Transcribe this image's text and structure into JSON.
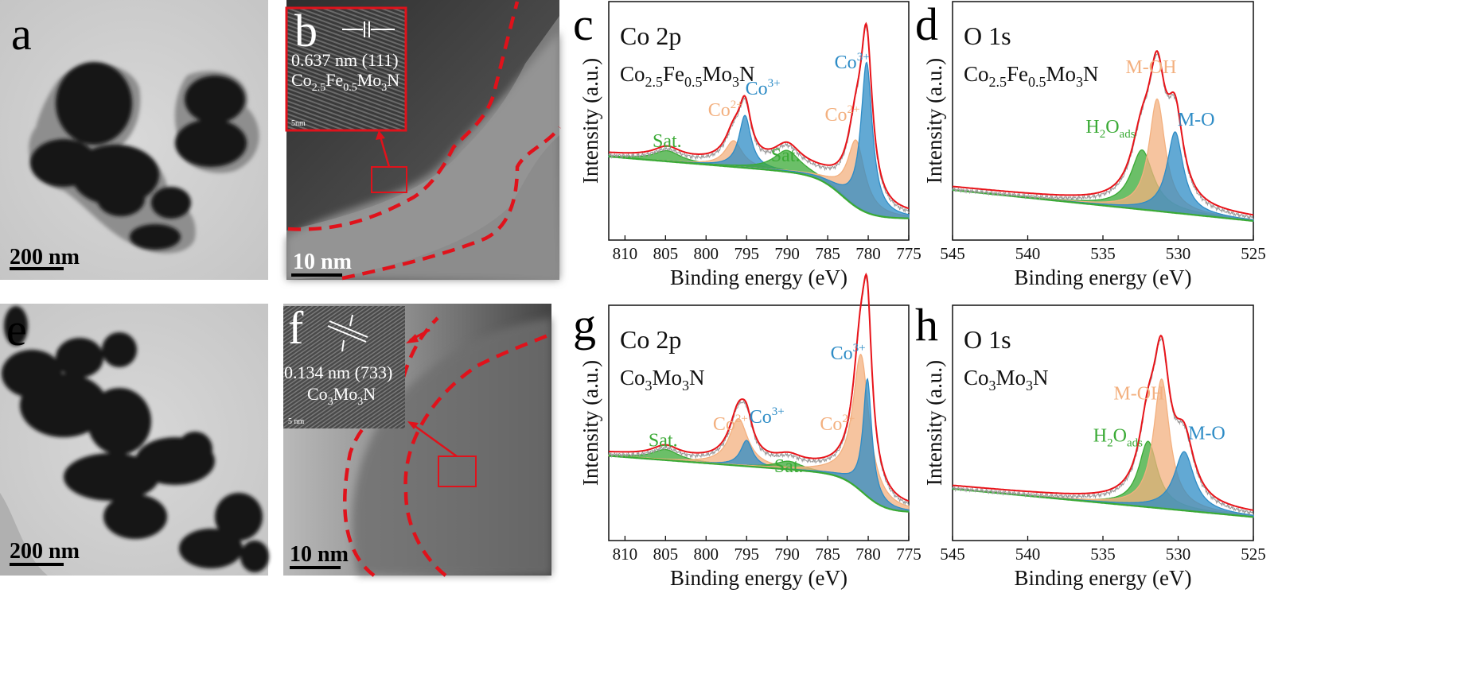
{
  "panels": {
    "a": {
      "letter": "a",
      "scale_bar": "200 nm"
    },
    "b": {
      "letter": "b",
      "scale_bar": "10 nm",
      "inset_spacing": "0.637 nm (111)",
      "inset_scale": "5nm",
      "inset_compound": {
        "base": "Co",
        "sub1": "2.5",
        "el2": "Fe",
        "sub2": "0.5",
        "el3": "Mo",
        "sub3": "3",
        "el4": "N"
      }
    },
    "e": {
      "letter": "e",
      "scale_bar": "200 nm"
    },
    "f": {
      "letter": "f",
      "scale_bar": "10 nm",
      "inset_spacing": "0.134 nm (733)",
      "inset_scale": "5 nm",
      "inset_compound": {
        "base": "Co",
        "sub1": "3",
        "el2": "Mo",
        "sub2": "3",
        "el3": "N"
      }
    }
  },
  "colors": {
    "envelope": "#e8141a",
    "co3": "#2e8cc6",
    "co2": "#f3b07f",
    "sat": "#3aaa35",
    "baseline": "#3aaa35",
    "raw": "#9a9a9a",
    "dashed": "#e0121b"
  },
  "chart_data": [
    {
      "panel": "c",
      "type": "line",
      "title": "Co 2p",
      "compound": {
        "base": "Co",
        "sub1": "2.5",
        "el2": "Fe",
        "sub2": "0.5",
        "el3": "Mo",
        "sub3": "3",
        "el4": "N"
      },
      "xlabel": "Binding energy (eV)",
      "ylabel": "Intensity (a.u.)",
      "xlim": [
        812,
        775
      ],
      "ylim": [
        0,
        100
      ],
      "xticks": [
        810,
        805,
        800,
        795,
        790,
        785,
        780,
        775
      ],
      "baseline": {
        "type": "sigmoid",
        "y_high": 35,
        "y_low": 9,
        "center": 783,
        "width": 1.6,
        "slope": 0.28,
        "ref": 812
      },
      "series": [
        {
          "name": "Sat.",
          "role": "sat",
          "center": 804.8,
          "height": 4.5,
          "width": 2.0,
          "label": "Sat.",
          "label_x": 804.8,
          "label_y": 39
        },
        {
          "name": "Co2+",
          "role": "co2",
          "center": 796.6,
          "height": 11,
          "width": 1.3,
          "label": "Co",
          "sup": "2+",
          "label_x": 797.6,
          "label_y": 52
        },
        {
          "name": "Co3+",
          "role": "co3",
          "center": 795.2,
          "height": 22,
          "width": 0.9,
          "label": "Co",
          "sup": "3+",
          "label_x": 793.0,
          "label_y": 61
        },
        {
          "name": "Sat.",
          "role": "sat",
          "center": 790.0,
          "height": 9,
          "width": 2.0,
          "label": "Sat.",
          "label_x": 790.2,
          "label_y": 33
        },
        {
          "name": "Co2+",
          "role": "co2",
          "center": 781.5,
          "height": 28,
          "width": 1.3,
          "label": "Co",
          "sup": "2+",
          "label_x": 783.2,
          "label_y": 50
        },
        {
          "name": "Co3+",
          "role": "co3",
          "center": 780.2,
          "height": 63,
          "width": 0.85,
          "label": "Co",
          "sup": "3+",
          "label_x": 782.0,
          "label_y": 72
        }
      ]
    },
    {
      "panel": "d",
      "type": "line",
      "title": "O 1s",
      "compound": {
        "base": "Co",
        "sub1": "2.5",
        "el2": "Fe",
        "sub2": "0.5",
        "el3": "Mo",
        "sub3": "3",
        "el4": "N"
      },
      "xlabel": "Binding energy (eV)",
      "ylabel": "Intensity (a.u.)",
      "xlim": [
        545,
        525
      ],
      "ylim": [
        0,
        100
      ],
      "xticks": [
        545,
        540,
        535,
        530,
        525
      ],
      "baseline": {
        "type": "linear",
        "y_start": 21,
        "y_end": 8
      },
      "series": [
        {
          "name": "H2Oads",
          "role": "sat",
          "center": 532.4,
          "height": 25,
          "width": 0.9,
          "label": "H",
          "sub": "2",
          "label_tail": "O",
          "sub2": "ads",
          "label_x": 534.5,
          "label_y": 45
        },
        {
          "name": "M-OH",
          "role": "co2",
          "center": 531.4,
          "height": 47,
          "width": 0.65,
          "label": "M-OH",
          "label_x": 531.8,
          "label_y": 70
        },
        {
          "name": "M-O",
          "role": "co3",
          "center": 530.2,
          "height": 34,
          "width": 0.65,
          "label": "M-O",
          "label_x": 528.8,
          "label_y": 48
        }
      ]
    },
    {
      "panel": "g",
      "type": "line",
      "title": "Co 2p",
      "compound": {
        "base": "Co",
        "sub1": "3",
        "el2": "Mo",
        "sub2": "3",
        "el3": "N"
      },
      "xlabel": "Binding energy (eV)",
      "ylabel": "Intensity (a.u.)",
      "xlim": [
        812,
        775
      ],
      "ylim": [
        0,
        100
      ],
      "xticks": [
        810,
        805,
        800,
        795,
        790,
        785,
        780,
        775
      ],
      "baseline": {
        "type": "sigmoid",
        "y_high": 36,
        "y_low": 12,
        "center": 780.5,
        "width": 1.4,
        "slope": 0.26,
        "ref": 812
      },
      "series": [
        {
          "name": "Sat.",
          "role": "sat",
          "center": 805.0,
          "height": 4.5,
          "width": 2.0,
          "label": "Sat.",
          "label_x": 805.3,
          "label_y": 40
        },
        {
          "name": "Co2+",
          "role": "co2",
          "center": 796.0,
          "height": 20,
          "width": 1.4,
          "label": "Co",
          "sup": "2+",
          "label_x": 797.0,
          "label_y": 47
        },
        {
          "name": "Co3+",
          "role": "co3",
          "center": 795.0,
          "height": 11,
          "width": 0.9,
          "label": "Co",
          "sup": "3+",
          "label_x": 792.5,
          "label_y": 50
        },
        {
          "name": "Sat.",
          "role": "sat",
          "center": 789.8,
          "height": 3.5,
          "width": 2.0,
          "label": "Sat.",
          "label_x": 789.8,
          "label_y": 29
        },
        {
          "name": "Co2+",
          "role": "co2",
          "center": 780.9,
          "height": 58,
          "width": 1.2,
          "label": "Co",
          "sup": "2+",
          "label_x": 783.8,
          "label_y": 47
        },
        {
          "name": "Co3+",
          "role": "co3",
          "center": 780.1,
          "height": 50,
          "width": 0.65,
          "label": "Co",
          "sup": "3+",
          "label_x": 782.5,
          "label_y": 77
        }
      ]
    },
    {
      "panel": "h",
      "type": "line",
      "title": "O 1s",
      "compound": {
        "base": "Co",
        "sub1": "3",
        "el2": "Mo",
        "sub2": "3",
        "el3": "N"
      },
      "xlabel": "Binding energy (eV)",
      "ylabel": "Intensity (a.u.)",
      "xlim": [
        545,
        525
      ],
      "ylim": [
        0,
        100
      ],
      "xticks": [
        545,
        540,
        535,
        530,
        525
      ],
      "baseline": {
        "type": "linear",
        "y_start": 22,
        "y_end": 10
      },
      "series": [
        {
          "name": "H2Oads",
          "role": "sat",
          "center": 532.0,
          "height": 28,
          "width": 0.75,
          "label": "H",
          "sub": "2",
          "label_tail": "O",
          "sub2": "ads",
          "label_x": 534.0,
          "label_y": 42
        },
        {
          "name": "M-OH",
          "role": "co2",
          "center": 531.1,
          "height": 55,
          "width": 0.65,
          "label": "M-OH",
          "label_x": 532.6,
          "label_y": 60
        },
        {
          "name": "M-O",
          "role": "co3",
          "center": 529.6,
          "height": 25,
          "width": 0.8,
          "label": "M-O",
          "label_x": 528.1,
          "label_y": 43
        }
      ]
    }
  ]
}
